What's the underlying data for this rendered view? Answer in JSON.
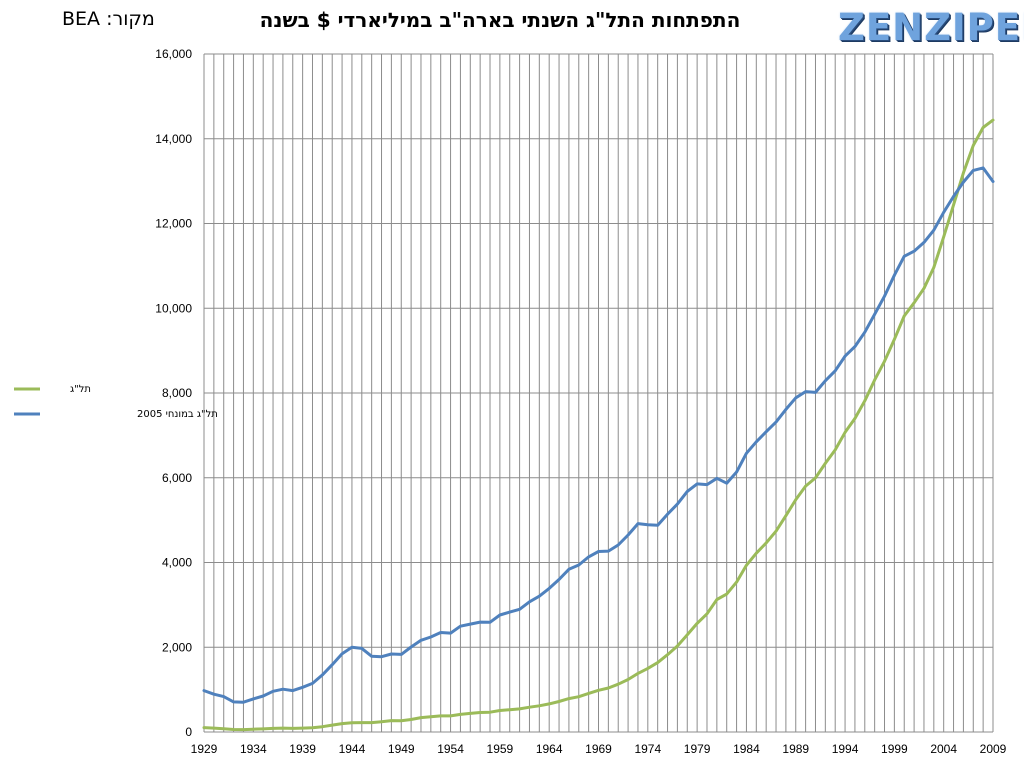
{
  "title": "התפתחות התל\"ג השנתי בארה\"ב במיליארדי $ בשנה",
  "source_label": "מקור:",
  "source_value": "BEA",
  "logo_text": "ZENZIPER",
  "colors": {
    "nominal": "#9bbb59",
    "real": "#4f81bd",
    "grid": "#8c8c8c"
  },
  "chart_data": {
    "type": "line",
    "title": "התפתחות התל\"ג השנתי בארה\"ב במיליארדי $ בשנה",
    "xlim": [
      1929,
      2009
    ],
    "ylim": [
      0,
      16000
    ],
    "x_ticks": [
      1929,
      1934,
      1939,
      1944,
      1949,
      1954,
      1959,
      1964,
      1969,
      1974,
      1979,
      1984,
      1989,
      1994,
      1999,
      2004,
      2009
    ],
    "y_ticks": [
      0,
      2000,
      4000,
      6000,
      8000,
      10000,
      12000,
      14000,
      16000
    ],
    "y_tick_labels": [
      "0",
      "2,000",
      "4,000",
      "6,000",
      "8,000",
      "10,000",
      "12,000",
      "14,000",
      "16,000"
    ],
    "grid": {
      "vertical_every_year": true,
      "horizontal": true
    },
    "legend_position": "left",
    "years": [
      1929,
      1930,
      1931,
      1932,
      1933,
      1934,
      1935,
      1936,
      1937,
      1938,
      1939,
      1940,
      1941,
      1942,
      1943,
      1944,
      1945,
      1946,
      1947,
      1948,
      1949,
      1950,
      1951,
      1952,
      1953,
      1954,
      1955,
      1956,
      1957,
      1958,
      1959,
      1960,
      1961,
      1962,
      1963,
      1964,
      1965,
      1966,
      1967,
      1968,
      1969,
      1970,
      1971,
      1972,
      1973,
      1974,
      1975,
      1976,
      1977,
      1978,
      1979,
      1980,
      1981,
      1982,
      1983,
      1984,
      1985,
      1986,
      1987,
      1988,
      1989,
      1990,
      1991,
      1992,
      1993,
      1994,
      1995,
      1996,
      1997,
      1998,
      1999,
      2000,
      2001,
      2002,
      2003,
      2004,
      2005,
      2006,
      2007,
      2008,
      2009
    ],
    "series": [
      {
        "name": "תל\"ג",
        "color": "#9bbb59",
        "values": [
          103,
          91,
          77,
          59,
          57,
          66,
          73,
          84,
          92,
          86,
          92,
          101,
          126,
          162,
          198,
          219,
          223,
          222,
          244,
          269,
          267,
          294,
          339,
          358,
          380,
          381,
          415,
          438,
          461,
          467,
          507,
          527,
          545,
          586,
          618,
          664,
          719,
          788,
          833,
          910,
          985,
          1039,
          1127,
          1238,
          1383,
          1500,
          1638,
          1825,
          2030,
          2294,
          2563,
          2789,
          3128,
          3255,
          3537,
          3933,
          4220,
          4463,
          4739,
          5104,
          5484,
          5803,
          5996,
          6338,
          6657,
          7072,
          7398,
          7817,
          8304,
          8747,
          9268,
          9817,
          10128,
          10470,
          10961,
          11686,
          12434,
          13195,
          13842,
          14265,
          14441
        ]
      },
      {
        "name": "תל\"ג במונחי 2005",
        "color": "#4f81bd",
        "values": [
          977,
          892,
          835,
          711,
          704,
          780,
          850,
          961,
          1010,
          977,
          1055,
          1147,
          1347,
          1588,
          1847,
          1998,
          1973,
          1786,
          1777,
          1841,
          1832,
          2005,
          2163,
          2243,
          2348,
          2333,
          2497,
          2547,
          2593,
          2588,
          2761,
          2830,
          2896,
          3073,
          3205,
          3389,
          3599,
          3839,
          3941,
          4131,
          4259,
          4270,
          4413,
          4648,
          4917,
          4890,
          4880,
          5141,
          5378,
          5677,
          5855,
          5839,
          5987,
          5871,
          6136,
          6577,
          6849,
          7086,
          7313,
          7613,
          7886,
          8034,
          8015,
          8287,
          8523,
          8871,
          9094,
          9434,
          9854,
          10284,
          10780,
          11226,
          11347,
          11553,
          11841,
          12264,
          12638,
          12976,
          13254,
          13312,
          12990
        ]
      }
    ]
  }
}
